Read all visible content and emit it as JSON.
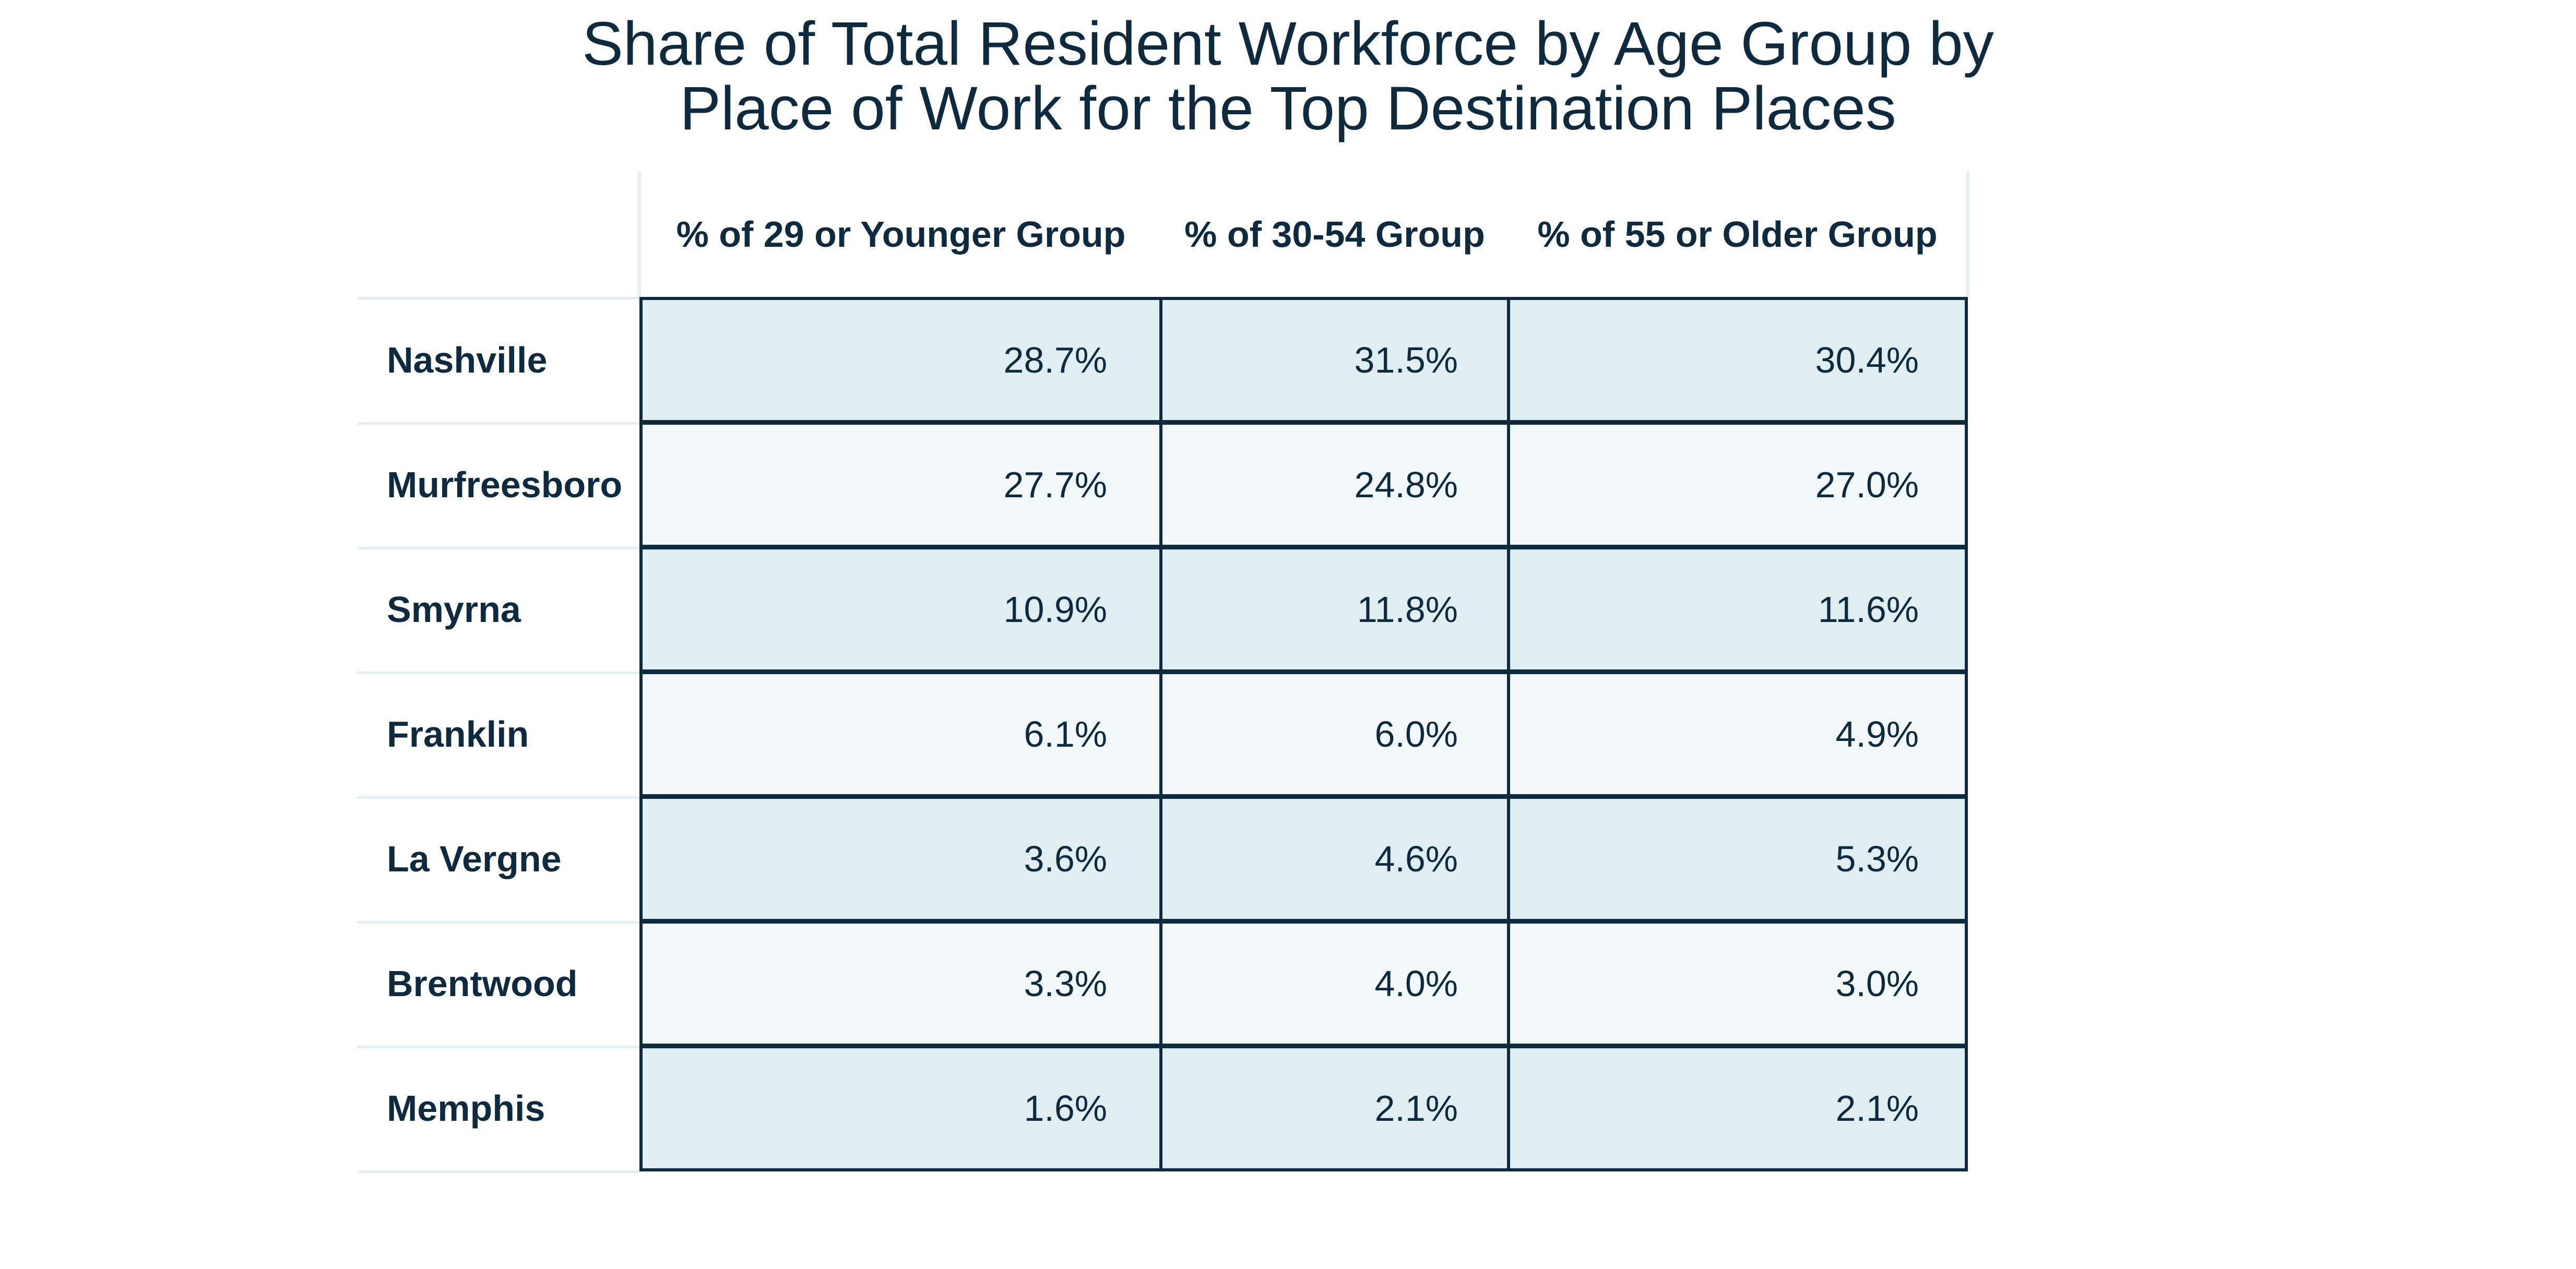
{
  "chart_data": {
    "type": "table",
    "title_lines": [
      "Share of Total Resident Workforce by Age Group by",
      "Place of Work for the Top Destination Places"
    ],
    "columns": [
      "% of 29 or Younger Group",
      "% of 30-54 Group",
      "% of 55 or Older Group"
    ],
    "rows": [
      {
        "label": "Nashville",
        "values": [
          "28.7%",
          "31.5%",
          "30.4%"
        ]
      },
      {
        "label": "Murfreesboro",
        "values": [
          "27.7%",
          "24.8%",
          "27.0%"
        ]
      },
      {
        "label": "Smyrna",
        "values": [
          "10.9%",
          "11.8%",
          "11.6%"
        ]
      },
      {
        "label": "Franklin",
        "values": [
          "6.1%",
          "6.0%",
          "4.9%"
        ]
      },
      {
        "label": "La Vergne",
        "values": [
          "3.6%",
          "4.6%",
          "5.3%"
        ]
      },
      {
        "label": "Brentwood",
        "values": [
          "3.3%",
          "4.0%",
          "3.0%"
        ]
      },
      {
        "label": "Memphis",
        "values": [
          "1.6%",
          "2.1%",
          "2.1%"
        ]
      }
    ],
    "colors": {
      "text": "#0e2a3f",
      "border": "#0e2a3f",
      "row_shade_odd": "#e0eef2",
      "row_shade_even": "#f2f8f9",
      "header_rule": "#e4eff3"
    }
  }
}
